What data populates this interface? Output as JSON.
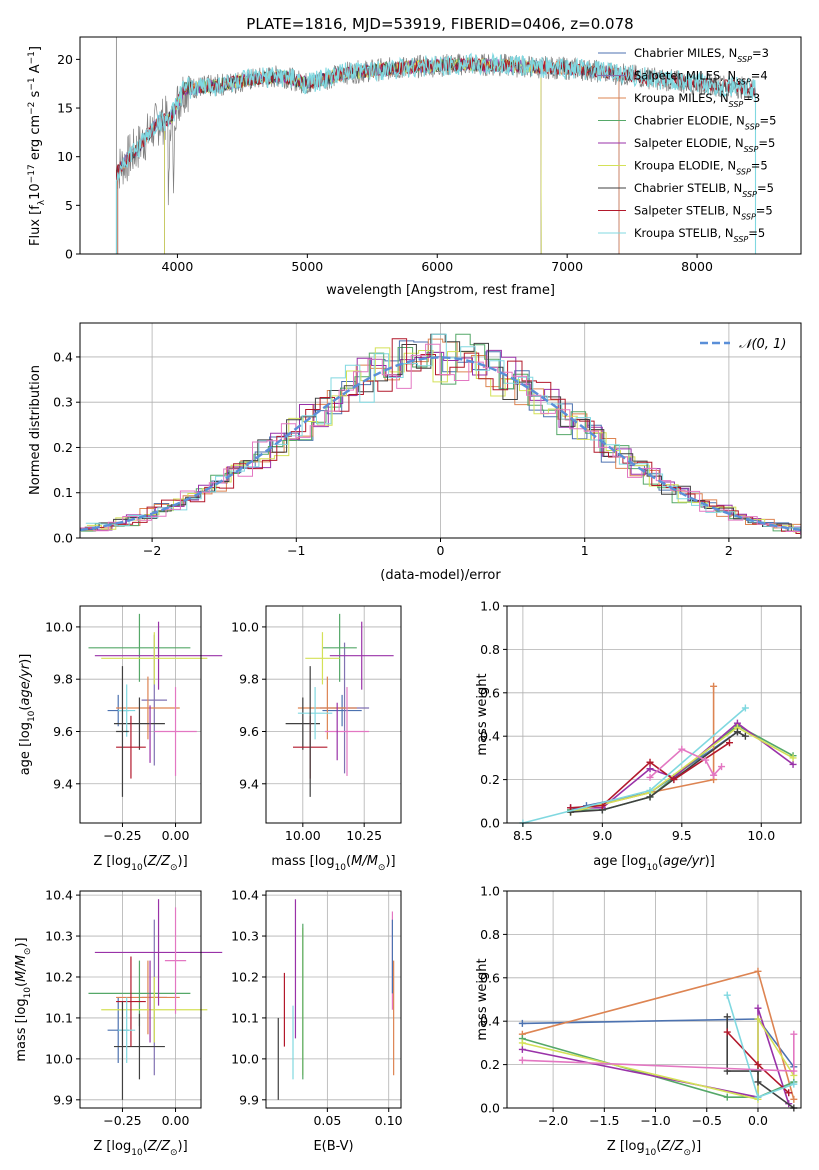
{
  "page": {
    "title": "PLATE=1816, MJD=53919, FIBERID=0406, z=0.078"
  },
  "colors": {
    "chabrier_miles": "#4c72b0",
    "salpeter_miles": "#8172b2",
    "kroupa_miles": "#dd8452",
    "chabrier_elodie": "#55a868",
    "salpeter_elodie": "#9932a8",
    "kroupa_elodie": "#d4e157",
    "chabrier_stelib": "#404040",
    "salpeter_stelib": "#b2182b",
    "kroupa_stelib": "#80d8e0",
    "gaussian": "#5a8fd8",
    "pink": "#e377c2",
    "data": "#808080"
  },
  "chart_data": [
    {
      "id": "spectrum",
      "type": "line",
      "title": "PLATE=1816, MJD=53919, FIBERID=0406, z=0.078",
      "xlabel": "wavelength [Angstrom, rest frame]",
      "ylabel": "Flux [f_λ 10^-17 erg cm^-2 s^-1 A^-1]",
      "xlim": [
        3250,
        8800
      ],
      "ylim": [
        0,
        22.3
      ],
      "xticks": [
        "4000",
        "5000",
        "6000",
        "7000",
        "8000"
      ],
      "yticks": [
        "0",
        "5",
        "10",
        "15",
        "20"
      ],
      "legend_position": "right",
      "series": [
        {
          "name": "Chabrier MILES, N_SSP=3"
        },
        {
          "name": "Salpeter MILES, N_SSP=4"
        },
        {
          "name": "Kroupa MILES, N_SSP=3"
        },
        {
          "name": "Chabrier ELODIE, N_SSP=5"
        },
        {
          "name": "Salpeter ELODIE, N_SSP=5"
        },
        {
          "name": "Kroupa ELODIE, N_SSP=5"
        },
        {
          "name": "Chabrier STELIB, N_SSP=5"
        },
        {
          "name": "Salpeter STELIB, N_SSP=5"
        },
        {
          "name": "Kroupa STELIB, N_SSP=5"
        }
      ],
      "continuum": {
        "x": [
          3530,
          3700,
          3850,
          3950,
          4050,
          4300,
          4500,
          4800,
          5000,
          5300,
          5600,
          5900,
          6200,
          6500,
          6800,
          7100,
          7400,
          7700,
          8000,
          8300,
          8450
        ],
        "y": [
          8.5,
          11.0,
          13.5,
          14.0,
          17.0,
          17.3,
          17.8,
          18.3,
          17.5,
          18.6,
          19.0,
          19.3,
          19.5,
          19.4,
          19.2,
          19.0,
          18.5,
          18.0,
          17.5,
          17.2,
          16.8
        ]
      }
    },
    {
      "id": "residuals",
      "type": "step",
      "xlabel": "(data-model)/error",
      "ylabel": "Normed distribution",
      "xlim": [
        -2.5,
        2.5
      ],
      "ylim": [
        0,
        0.475
      ],
      "xticks": [
        "−2",
        "−1",
        "0",
        "1",
        "2"
      ],
      "yticks": [
        "0.0",
        "0.1",
        "0.2",
        "0.3",
        "0.4"
      ],
      "grid": true,
      "legend_position": "top-right",
      "gaussian_label": "𝒩(0, 1)"
    },
    {
      "id": "age_vs_Z",
      "type": "errorbar",
      "xlabel": "Z [log10(Z/Z_sun)]",
      "ylabel": "age [log10(age/yr)]",
      "xlim": [
        -0.45,
        0.12
      ],
      "ylim": [
        9.25,
        10.08
      ],
      "xticks": [
        "−0.25",
        "0.00"
      ],
      "yticks": [
        "9.4",
        "9.6",
        "9.8",
        "10.0"
      ],
      "grid": true,
      "points": [
        {
          "c": "chabrier_miles",
          "x": -0.27,
          "y": 9.68,
          "xe": 0.05,
          "ye": 0.06
        },
        {
          "c": "salpeter_miles",
          "x": -0.1,
          "y": 9.72,
          "xe": 0.06,
          "ye": 0.25
        },
        {
          "c": "kroupa_miles",
          "x": -0.13,
          "y": 9.69,
          "xe": 0.15,
          "ye": 0.12
        },
        {
          "c": "chabrier_elodie",
          "x": -0.17,
          "y": 9.92,
          "xe": 0.24,
          "ye": 0.13
        },
        {
          "c": "salpeter_elodie",
          "x": -0.08,
          "y": 9.89,
          "xe": 0.3,
          "ye": 0.13
        },
        {
          "c": "kroupa_elodie",
          "x": -0.1,
          "y": 9.88,
          "xe": 0.25,
          "ye": 0.1
        },
        {
          "c": "chabrier_stelib",
          "x": -0.17,
          "y": 9.63,
          "xe": 0.12,
          "ye": 0.1
        },
        {
          "c": "salpeter_stelib",
          "x": -0.21,
          "y": 9.54,
          "xe": 0.07,
          "ye": 0.12
        },
        {
          "c": "kroupa_stelib",
          "x": -0.23,
          "y": 9.68,
          "xe": 0.04,
          "ye": 0.1
        },
        {
          "c": "chabrier_stelib",
          "x": -0.25,
          "y": 9.6,
          "xe": 0.03,
          "ye": 0.25
        },
        {
          "c": "pink",
          "x": 0.0,
          "y": 9.6,
          "xe": 0.1,
          "ye": 0.17
        },
        {
          "c": "salpeter_elodie",
          "x": -0.12,
          "y": 9.59,
          "xe": 0.0,
          "ye": 0.11
        }
      ]
    },
    {
      "id": "age_vs_mass",
      "type": "errorbar",
      "xlabel": "mass [log10(M/M_sun)]",
      "ylabel": "",
      "xlim": [
        9.85,
        10.4
      ],
      "ylim": [
        9.25,
        10.08
      ],
      "xticks": [
        "10.00",
        "10.25"
      ],
      "yticks": [
        "9.4",
        "9.6",
        "9.8",
        "10.0"
      ],
      "grid": true,
      "points": [
        {
          "c": "chabrier_miles",
          "x": 10.16,
          "y": 9.68,
          "xe": 0.08,
          "ye": 0.06
        },
        {
          "c": "salpeter_miles",
          "x": 10.17,
          "y": 9.69,
          "xe": 0.1,
          "ye": 0.25
        },
        {
          "c": "kroupa_miles",
          "x": 10.1,
          "y": 9.69,
          "xe": 0.12,
          "ye": 0.12
        },
        {
          "c": "chabrier_elodie",
          "x": 10.15,
          "y": 9.92,
          "xe": 0.07,
          "ye": 0.13
        },
        {
          "c": "salpeter_elodie",
          "x": 10.24,
          "y": 9.89,
          "xe": 0.13,
          "ye": 0.13
        },
        {
          "c": "kroupa_elodie",
          "x": 10.08,
          "y": 9.88,
          "xe": 0.07,
          "ye": 0.1
        },
        {
          "c": "chabrier_stelib",
          "x": 10.0,
          "y": 9.63,
          "xe": 0.07,
          "ye": 0.1
        },
        {
          "c": "salpeter_stelib",
          "x": 10.03,
          "y": 9.54,
          "xe": 0.07,
          "ye": 0.12
        },
        {
          "c": "kroupa_stelib",
          "x": 10.05,
          "y": 9.67,
          "xe": 0.07,
          "ye": 0.1
        },
        {
          "c": "chabrier_stelib",
          "x": 10.03,
          "y": 9.6,
          "xe": 0.0,
          "ye": 0.25
        },
        {
          "c": "pink",
          "x": 10.18,
          "y": 9.6,
          "xe": 0.09,
          "ye": 0.17
        },
        {
          "c": "salpeter_elodie",
          "x": 10.14,
          "y": 9.6,
          "xe": 0.0,
          "ye": 0.11
        }
      ]
    },
    {
      "id": "weight_vs_age",
      "type": "line",
      "xlabel": "age [log10(age/yr)]",
      "ylabel": "mass weight",
      "xlim": [
        8.4,
        10.25
      ],
      "ylim": [
        0,
        1.0
      ],
      "xticks": [
        "8.5",
        "9.0",
        "9.5",
        "10.0"
      ],
      "yticks": [
        "0.0",
        "0.2",
        "0.4",
        "0.6",
        "0.8",
        "1.0"
      ],
      "grid": true,
      "series": [
        {
          "c": "chabrier_miles",
          "x": [
            8.8,
            8.9,
            9.3,
            9.85
          ],
          "y": [
            0.06,
            0.08,
            0.14,
            0.42
          ]
        },
        {
          "c": "kroupa_miles",
          "x": [
            8.8,
            9.3,
            9.7,
            9.7
          ],
          "y": [
            0.05,
            0.14,
            0.2,
            0.63
          ]
        },
        {
          "c": "chabrier_elodie",
          "x": [
            8.8,
            9.0,
            9.3,
            9.85,
            10.2
          ],
          "y": [
            0.06,
            0.06,
            0.12,
            0.45,
            0.31
          ]
        },
        {
          "c": "salpeter_elodie",
          "x": [
            8.8,
            9.0,
            9.3,
            9.45,
            9.85,
            10.2
          ],
          "y": [
            0.07,
            0.07,
            0.25,
            0.21,
            0.46,
            0.27
          ]
        },
        {
          "c": "kroupa_elodie",
          "x": [
            8.8,
            9.3,
            9.85,
            10.2
          ],
          "y": [
            0.05,
            0.14,
            0.44,
            0.3
          ]
        },
        {
          "c": "chabrier_stelib",
          "x": [
            8.8,
            9.0,
            9.3,
            9.85,
            9.9
          ],
          "y": [
            0.05,
            0.06,
            0.12,
            0.42,
            0.4
          ]
        },
        {
          "c": "salpeter_stelib",
          "x": [
            8.8,
            9.0,
            9.3,
            9.45,
            9.8
          ],
          "y": [
            0.07,
            0.08,
            0.28,
            0.2,
            0.37
          ]
        },
        {
          "c": "kroupa_stelib",
          "x": [
            8.5,
            9.3,
            9.9
          ],
          "y": [
            0.0,
            0.15,
            0.53
          ]
        },
        {
          "c": "pink",
          "x": [
            9.3,
            9.5,
            9.65,
            9.7,
            9.75
          ],
          "y": [
            0.21,
            0.34,
            0.29,
            0.22,
            0.26
          ]
        }
      ]
    },
    {
      "id": "mass_vs_Z",
      "type": "errorbar",
      "xlabel": "Z [log10(Z/Z_sun)]",
      "ylabel": "mass [log10(M/M_sun)]",
      "xlim": [
        -0.45,
        0.12
      ],
      "ylim": [
        9.88,
        10.41
      ],
      "xticks": [
        "−0.25",
        "0.00"
      ],
      "yticks": [
        "9.9",
        "10.0",
        "10.1",
        "10.2",
        "10.3",
        "10.4"
      ],
      "grid": true,
      "points": [
        {
          "c": "chabrier_miles",
          "x": -0.27,
          "y": 10.07,
          "xe": 0.05,
          "ye": 0.08
        },
        {
          "c": "salpeter_miles",
          "x": -0.1,
          "y": 10.15,
          "xe": 0.06,
          "ye": 0.19
        },
        {
          "c": "kroupa_miles",
          "x": -0.13,
          "y": 10.15,
          "xe": 0.15,
          "ye": 0.09
        },
        {
          "c": "chabrier_elodie",
          "x": -0.17,
          "y": 10.16,
          "xe": 0.24,
          "ye": 0.08
        },
        {
          "c": "salpeter_elodie",
          "x": -0.08,
          "y": 10.26,
          "xe": 0.3,
          "ye": 0.13
        },
        {
          "c": "kroupa_elodie",
          "x": -0.1,
          "y": 10.12,
          "xe": 0.25,
          "ye": 0.08
        },
        {
          "c": "chabrier_stelib",
          "x": -0.17,
          "y": 10.03,
          "xe": 0.12,
          "ye": 0.08
        },
        {
          "c": "salpeter_stelib",
          "x": -0.21,
          "y": 10.14,
          "xe": 0.07,
          "ye": 0.11
        },
        {
          "c": "kroupa_stelib",
          "x": -0.23,
          "y": 10.07,
          "xe": 0.04,
          "ye": 0.08
        },
        {
          "c": "chabrier_stelib",
          "x": -0.25,
          "y": 10.02,
          "xe": 0.0,
          "ye": 0.12
        },
        {
          "c": "pink",
          "x": 0.0,
          "y": 10.24,
          "xe": 0.05,
          "ye": 0.13
        },
        {
          "c": "salpeter_elodie",
          "x": -0.12,
          "y": 10.14,
          "xe": 0.0,
          "ye": 0.1
        }
      ]
    },
    {
      "id": "mass_vs_ebv",
      "type": "errorbar",
      "xlabel": "E(B-V)",
      "ylabel": "",
      "xlim": [
        0.0,
        0.11
      ],
      "ylim": [
        9.88,
        10.41
      ],
      "xticks": [
        "0.05",
        "0.10"
      ],
      "yticks": [
        "9.9",
        "10.0",
        "10.1",
        "10.2",
        "10.3",
        "10.4"
      ],
      "grid": true,
      "points": [
        {
          "c": "chabrier_stelib",
          "x": 0.01,
          "y": 10.0,
          "xe": 0,
          "ye": 0.1
        },
        {
          "c": "salpeter_stelib",
          "x": 0.015,
          "y": 10.12,
          "xe": 0,
          "ye": 0.09
        },
        {
          "c": "salpeter_elodie",
          "x": 0.024,
          "y": 10.22,
          "xe": 0,
          "ye": 0.17
        },
        {
          "c": "kroupa_stelib",
          "x": 0.022,
          "y": 10.04,
          "xe": 0,
          "ye": 0.09
        },
        {
          "c": "kroupa_elodie",
          "x": 0.03,
          "y": 10.14,
          "xe": 0,
          "ye": 0.18
        },
        {
          "c": "chabrier_elodie",
          "x": 0.03,
          "y": 10.14,
          "xe": 0,
          "ye": 0.19
        },
        {
          "c": "pink",
          "x": 0.103,
          "y": 10.24,
          "xe": 0,
          "ye": 0.12
        },
        {
          "c": "kroupa_miles",
          "x": 0.104,
          "y": 10.1,
          "xe": 0,
          "ye": 0.14
        },
        {
          "c": "chabrier_miles",
          "x": 0.103,
          "y": 10.25,
          "xe": 0,
          "ye": 0.09
        }
      ]
    },
    {
      "id": "weight_vs_Z",
      "type": "line",
      "xlabel": "Z [log10(Z/Z_sun)]",
      "ylabel": "mass weight",
      "xlim": [
        -2.45,
        0.42
      ],
      "ylim": [
        0,
        1.0
      ],
      "xticks": [
        "−2.0",
        "−1.5",
        "−1.0",
        "−0.5",
        "0.0"
      ],
      "yticks": [
        "0.0",
        "0.2",
        "0.4",
        "0.6",
        "0.8",
        "1.0"
      ],
      "grid": true,
      "series": [
        {
          "c": "chabrier_miles",
          "x": [
            -2.3,
            0.0,
            0.35
          ],
          "y": [
            0.39,
            0.41,
            0.19
          ]
        },
        {
          "c": "kroupa_miles",
          "x": [
            -2.3,
            0.0,
            0.35
          ],
          "y": [
            0.34,
            0.63,
            0.04
          ]
        },
        {
          "c": "chabrier_elodie",
          "x": [
            -2.3,
            -0.3,
            0.0,
            0.35
          ],
          "y": [
            0.32,
            0.05,
            0.05,
            0.12
          ]
        },
        {
          "c": "salpeter_elodie",
          "x": [
            -2.3,
            0.0,
            0.0,
            0.3
          ],
          "y": [
            0.27,
            0.05,
            0.46,
            0.02
          ]
        },
        {
          "c": "kroupa_elodie",
          "x": [
            -2.3,
            0.0,
            0.0,
            0.35
          ],
          "y": [
            0.3,
            0.04,
            0.41,
            0.15
          ]
        },
        {
          "c": "chabrier_stelib",
          "x": [
            -0.3,
            -0.3,
            0.0,
            0.0,
            0.35
          ],
          "y": [
            0.42,
            0.17,
            0.17,
            0.12,
            0.0
          ]
        },
        {
          "c": "salpeter_stelib",
          "x": [
            -0.3,
            0.0,
            0.3
          ],
          "y": [
            0.35,
            0.2,
            0.07
          ]
        },
        {
          "c": "kroupa_stelib",
          "x": [
            -0.3,
            0.0,
            0.35
          ],
          "y": [
            0.52,
            0.05,
            0.11
          ]
        },
        {
          "c": "pink",
          "x": [
            -2.3,
            0.35,
            0.35
          ],
          "y": [
            0.22,
            0.17,
            0.34
          ]
        }
      ]
    }
  ]
}
